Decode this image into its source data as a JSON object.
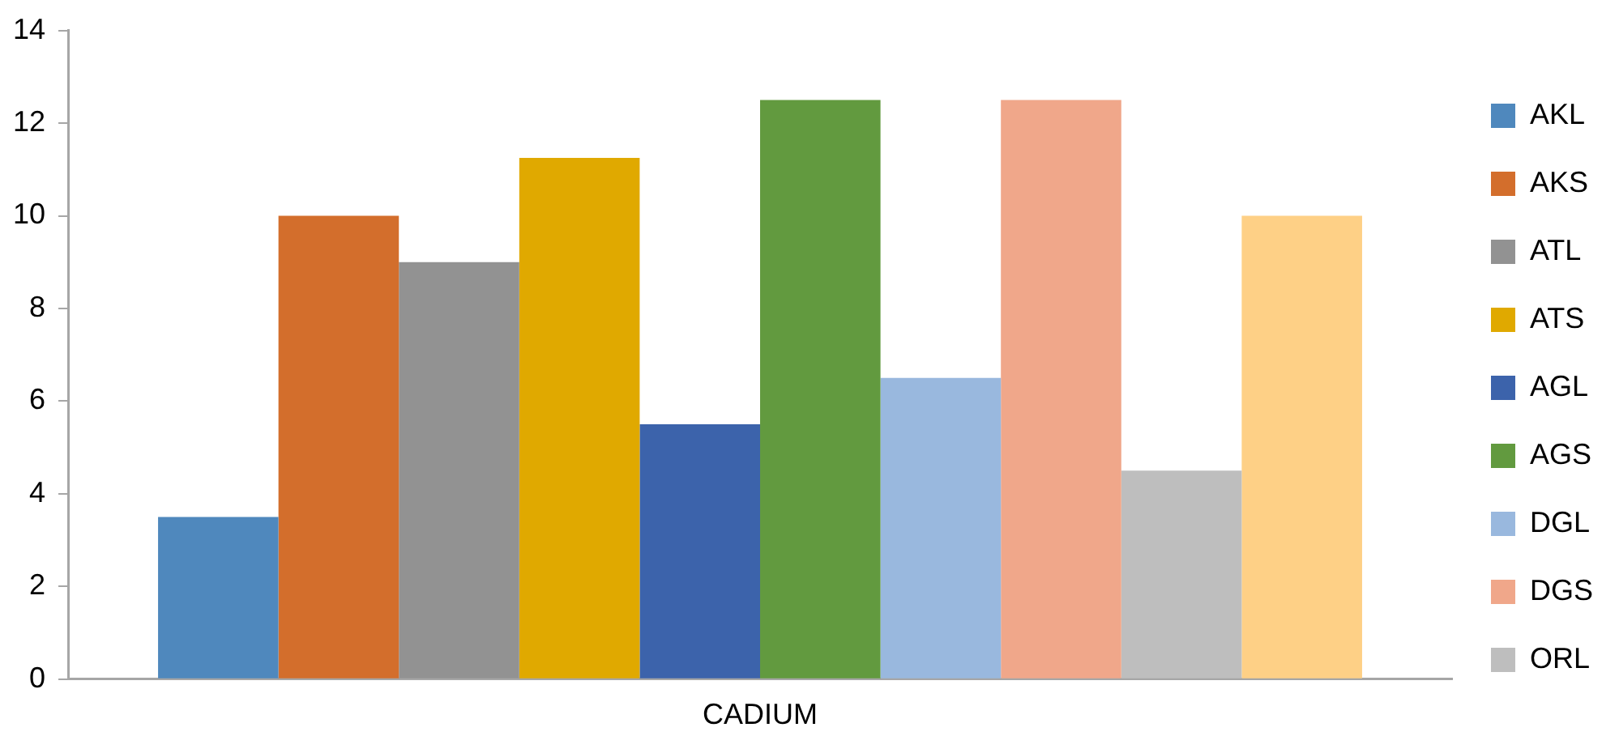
{
  "chart_data": {
    "type": "bar",
    "categories": [
      "CADIUM"
    ],
    "series": [
      {
        "name": "AKL",
        "color": "#4f88bd",
        "values": [
          3.5
        ]
      },
      {
        "name": "AKS",
        "color": "#d36e2c",
        "values": [
          10
        ]
      },
      {
        "name": "ATL",
        "color": "#929292",
        "values": [
          9
        ]
      },
      {
        "name": "ATS",
        "color": "#e0a900",
        "values": [
          11.25
        ]
      },
      {
        "name": "AGL",
        "color": "#3c63ab",
        "values": [
          5.5
        ]
      },
      {
        "name": "AGS",
        "color": "#629a3f",
        "values": [
          12.5
        ]
      },
      {
        "name": "DGL",
        "color": "#99b8de",
        "values": [
          6.5
        ]
      },
      {
        "name": "DGS",
        "color": "#f0a78a",
        "values": [
          12.5
        ]
      },
      {
        "name": "ORL",
        "color": "#bebebe",
        "values": [
          4.5
        ]
      },
      {
        "color": "#fed086",
        "values": [
          10
        ]
      }
    ],
    "ylim": [
      0,
      14
    ],
    "yticks": [
      0,
      2,
      4,
      6,
      8,
      10,
      12,
      14
    ],
    "grid": false,
    "legend": "right"
  }
}
